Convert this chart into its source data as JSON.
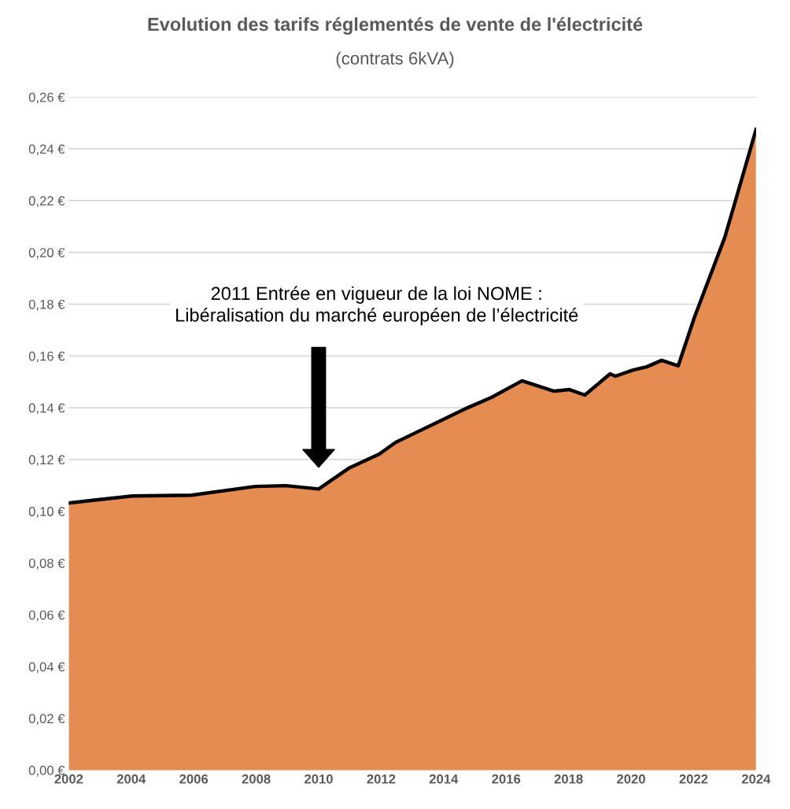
{
  "chart_data": {
    "type": "area",
    "title": "Evolution des tarifs réglementés de vente de l'électricité",
    "subtitle": "(contrats 6kVA)",
    "x": [
      2002,
      2002.88,
      2004.04,
      2005.93,
      2007.97,
      2008.95,
      2010.0,
      2010.96,
      2011.94,
      2012.46,
      2014.77,
      2015.53,
      2016.51,
      2017.54,
      2018.03,
      2018.52,
      2019.33,
      2019.5,
      2020.07,
      2020.5,
      2020.98,
      2021.51,
      2022.03,
      2023.0,
      2023.36,
      2024
    ],
    "series": [
      {
        "color": "#e58c52",
        "values": [
          0.1032,
          0.1044,
          0.1059,
          0.1062,
          0.1096,
          0.1099,
          0.1086,
          0.1166,
          0.1221,
          0.1266,
          0.14,
          0.144,
          0.1504,
          0.1464,
          0.147,
          0.1449,
          0.1531,
          0.1522,
          0.1546,
          0.1558,
          0.1583,
          0.1562,
          0.175,
          0.2058,
          0.2207,
          0.2475
        ]
      }
    ],
    "xlim": [
      2002,
      2024
    ],
    "xticks": [
      2002,
      2004,
      2006,
      2008,
      2010,
      2012,
      2014,
      2016,
      2018,
      2020,
      2022,
      2024
    ],
    "ylim": [
      0,
      0.26
    ],
    "yticks": [
      {
        "value": 0,
        "label": "0,00 €"
      },
      {
        "value": 0.02,
        "label": "0,02 €"
      },
      {
        "value": 0.04,
        "label": "0,04 €"
      },
      {
        "value": 0.06,
        "label": "0,06 €"
      },
      {
        "value": 0.08,
        "label": "0,08 €"
      },
      {
        "value": 0.1,
        "label": "0,10 €"
      },
      {
        "value": 0.12,
        "label": "0,12 €"
      },
      {
        "value": 0.14,
        "label": "0,14 €"
      },
      {
        "value": 0.16,
        "label": "0,16 €"
      },
      {
        "value": 0.18,
        "label": "0,18 €"
      },
      {
        "value": 0.2,
        "label": "0,20 €"
      },
      {
        "value": 0.22,
        "label": "0,22 €"
      },
      {
        "value": 0.24,
        "label": "0,24 €"
      },
      {
        "value": 0.26,
        "label": "0,26 €"
      }
    ],
    "annotations": [
      "2011 Entrée en vigueur de la loi NOME :\nLibéralisation du marché européen de l’électricité"
    ],
    "grid": "y",
    "legend": false,
    "marker": "none",
    "line_style": "solid"
  }
}
